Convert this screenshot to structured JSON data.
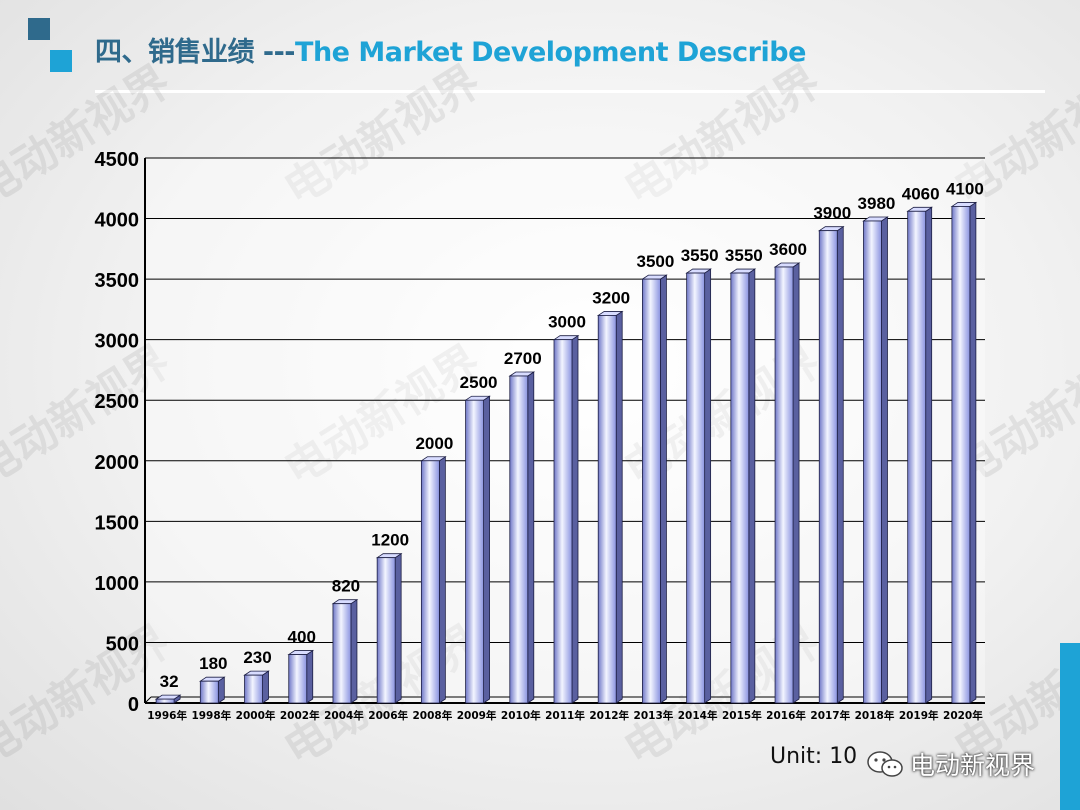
{
  "header": {
    "title_cn": "四、销售业绩",
    "title_sep": " ---",
    "title_en": "The Market Development Describe"
  },
  "footer": {
    "unit_text": "Unit: 10",
    "brand_text": "电动新视界",
    "brand_icon": "wechat-icon"
  },
  "watermark_text": "电动新视界",
  "colors": {
    "title_cn": "#2f6a8c",
    "title_en": "#1ea3d6",
    "accent": "#1ea3d6",
    "bar_face": "#b9c3ff",
    "bar_side": "#5a60a0"
  },
  "chart_data": {
    "type": "bar",
    "categories": [
      "1996年",
      "1998年",
      "2000年",
      "2002年",
      "2004年",
      "2006年",
      "2008年",
      "2009年",
      "2010年",
      "2011年",
      "2012年",
      "2013年",
      "2014年",
      "2015年",
      "2016年",
      "2017年",
      "2018年",
      "2019年",
      "2020年"
    ],
    "values": [
      32,
      180,
      230,
      400,
      820,
      1200,
      2000,
      2500,
      2700,
      3000,
      3200,
      3500,
      3550,
      3550,
      3600,
      3900,
      3980,
      4060,
      4100
    ],
    "ylim": [
      0,
      4500
    ],
    "yticks": [
      0,
      500,
      1000,
      1500,
      2000,
      2500,
      3000,
      3500,
      4000,
      4500
    ],
    "grid": true,
    "bar_style": "3d-cylinder",
    "data_labels": true
  }
}
